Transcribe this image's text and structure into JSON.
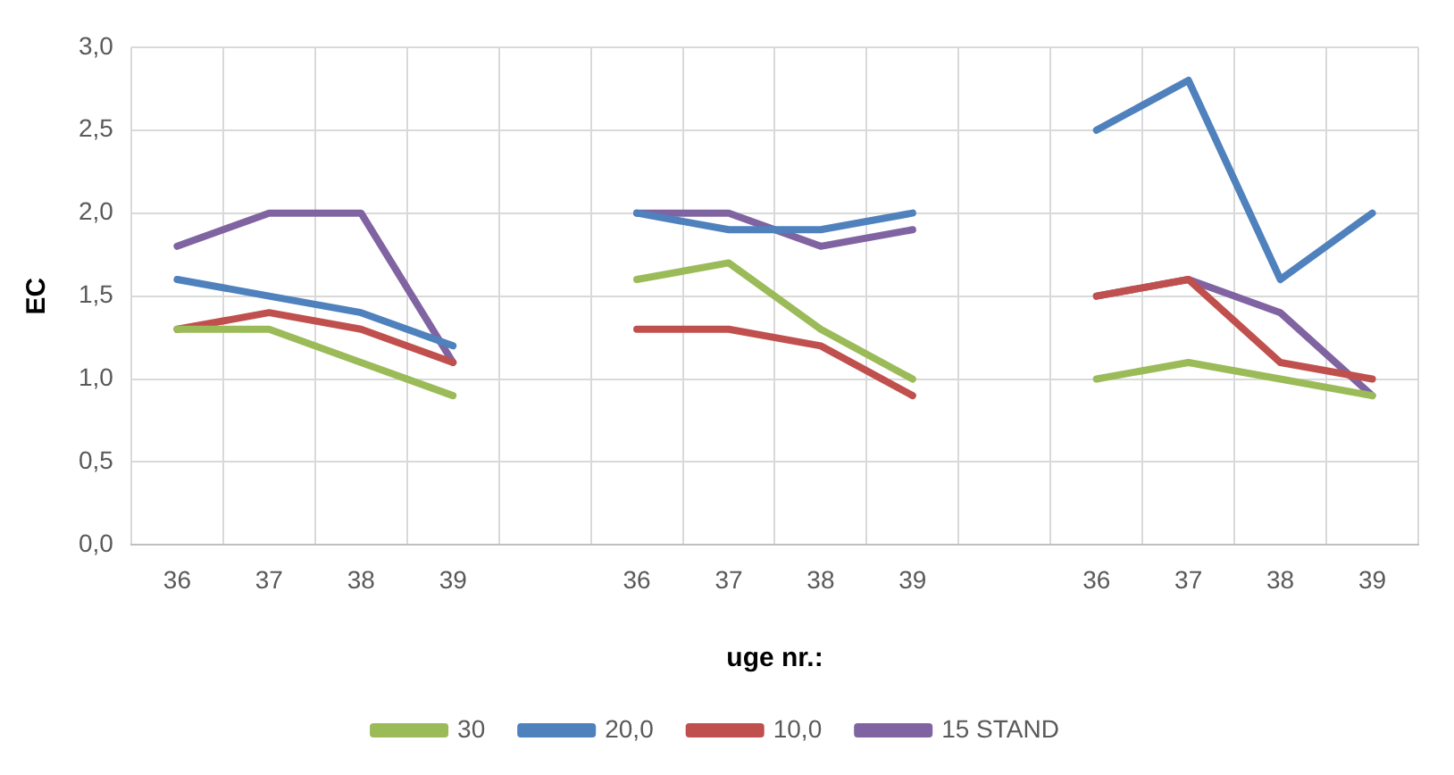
{
  "chart_data": {
    "type": "line",
    "xlabel": "uge nr.:",
    "ylabel": "EC",
    "categories": [
      "36",
      "37",
      "38",
      "39",
      null,
      "36",
      "37",
      "38",
      "39",
      null,
      "36",
      "37",
      "38",
      "39"
    ],
    "series": [
      {
        "name": "30",
        "color": "#9bbb59",
        "values": [
          1.3,
          1.3,
          1.1,
          0.9,
          null,
          1.6,
          1.7,
          1.3,
          1.0,
          null,
          1.0,
          1.1,
          1.0,
          0.9
        ]
      },
      {
        "name": "20,0",
        "color": "#4f81bd",
        "values": [
          1.6,
          1.5,
          1.4,
          1.2,
          null,
          2.0,
          1.9,
          1.9,
          2.0,
          null,
          2.5,
          2.8,
          1.6,
          2.0
        ]
      },
      {
        "name": "10,0",
        "color": "#c0504d",
        "values": [
          1.3,
          1.4,
          1.3,
          1.1,
          null,
          1.3,
          1.3,
          1.2,
          0.9,
          null,
          1.5,
          1.6,
          1.1,
          1.0
        ]
      },
      {
        "name": "15 STAND",
        "color": "#8064a2",
        "values": [
          1.8,
          2.0,
          2.0,
          1.1,
          null,
          2.0,
          2.0,
          1.8,
          1.9,
          null,
          1.5,
          1.6,
          1.4,
          0.9
        ]
      }
    ],
    "ylim": [
      0,
      3
    ],
    "yticks": [
      {
        "value": 0,
        "label": "0,0"
      },
      {
        "value": 0.5,
        "label": "0,5"
      },
      {
        "value": 1,
        "label": "1,0"
      },
      {
        "value": 1.5,
        "label": "1,5"
      },
      {
        "value": 2,
        "label": "2,0"
      },
      {
        "value": 2.5,
        "label": "2,5"
      },
      {
        "value": 3,
        "label": "3,0"
      }
    ],
    "grid": true,
    "legend": "bottom",
    "marker": "none",
    "line_style": "solid"
  }
}
